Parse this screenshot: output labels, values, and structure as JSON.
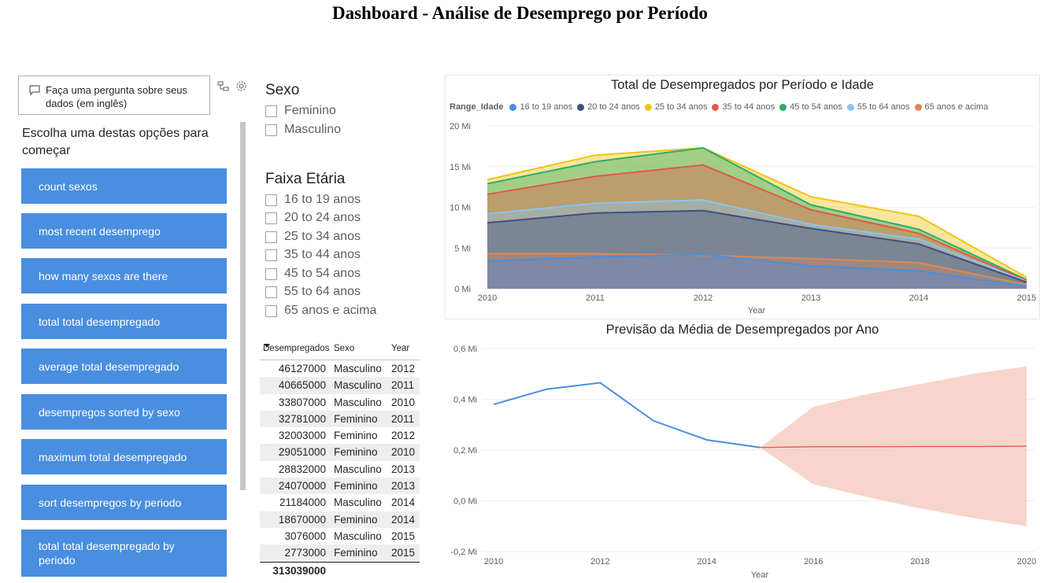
{
  "page_title": "Dashboard - Análise de Desemprego por Período",
  "qa": {
    "placeholder": "Faça uma pergunta sobre seus dados (em inglês)",
    "heading": "Escolha uma destas opções para começar",
    "suggestions": [
      "count sexos",
      "most recent desemprego",
      "how many sexos are there",
      "total total desempregado",
      "average total desempregado",
      "desempregos sorted by sexo",
      "maximum total desempregado",
      "sort desempregos by periodo",
      "total total desempregado by periodo"
    ]
  },
  "slicers": {
    "sexo": {
      "title": "Sexo",
      "options": [
        "Feminino",
        "Masculino"
      ]
    },
    "faixa": {
      "title": "Faixa Etária",
      "options": [
        "16 to 19 anos",
        "20 to 24 anos",
        "25 to 34 anos",
        "35 to 44 anos",
        "45 to 54 anos",
        "55 to 64 anos",
        "65 anos e acima"
      ]
    }
  },
  "table": {
    "columns": [
      "Desempregados",
      "Sexo",
      "Year"
    ],
    "rows": [
      [
        "46127000",
        "Masculino",
        "2012"
      ],
      [
        "40665000",
        "Masculino",
        "2011"
      ],
      [
        "33807000",
        "Masculino",
        "2010"
      ],
      [
        "32781000",
        "Feminino",
        "2011"
      ],
      [
        "32003000",
        "Feminino",
        "2012"
      ],
      [
        "29051000",
        "Feminino",
        "2010"
      ],
      [
        "28832000",
        "Masculino",
        "2013"
      ],
      [
        "24070000",
        "Feminino",
        "2013"
      ],
      [
        "21184000",
        "Masculino",
        "2014"
      ],
      [
        "18670000",
        "Feminino",
        "2014"
      ],
      [
        "3076000",
        "Masculino",
        "2015"
      ],
      [
        "2773000",
        "Feminino",
        "2015"
      ]
    ],
    "total": "313039000"
  },
  "chart_data": [
    {
      "type": "area",
      "title": "Total de Desempregados por Período e Idade",
      "xlabel": "Year",
      "ylabel": "",
      "legend_title": "Range_Idade",
      "legend_position": "top-left",
      "x": [
        2010,
        2011,
        2012,
        2013,
        2014,
        2015
      ],
      "ylim": [
        0,
        20
      ],
      "yticks": [
        "0 Mi",
        "5 Mi",
        "10 Mi",
        "15 Mi",
        "20 Mi"
      ],
      "unit": "Mi",
      "series": [
        {
          "name": "16 to 19 anos",
          "color": "#4a8ee0",
          "values": [
            3.4,
            3.9,
            4.2,
            2.8,
            2.2,
            0.3
          ]
        },
        {
          "name": "20 to 24 anos",
          "color": "#3f4f7f",
          "values": [
            8.1,
            9.3,
            9.6,
            7.4,
            5.5,
            0.8
          ]
        },
        {
          "name": "25 to 34 anos",
          "color": "#f0c419",
          "values": [
            13.4,
            16.4,
            17.3,
            11.3,
            8.9,
            1.4
          ]
        },
        {
          "name": "35 to 44 anos",
          "color": "#e05a4a",
          "values": [
            11.6,
            13.8,
            15.2,
            9.7,
            6.8,
            1.0
          ]
        },
        {
          "name": "45 to 54 anos",
          "color": "#2bae66",
          "values": [
            12.9,
            15.6,
            17.3,
            10.3,
            7.3,
            1.1
          ]
        },
        {
          "name": "55 to 64 anos",
          "color": "#8ac4f0",
          "values": [
            9.2,
            10.5,
            10.9,
            7.9,
            6.1,
            0.9
          ]
        },
        {
          "name": "65 anos e acima",
          "color": "#d9895a",
          "values": [
            4.3,
            4.3,
            4.1,
            3.7,
            3.2,
            0.5
          ]
        }
      ]
    },
    {
      "type": "line",
      "title": "Previsão da Média  de Desempregados por Ano",
      "xlabel": "Year",
      "ylabel": "",
      "x_ticks": [
        2010,
        2012,
        2014,
        2016,
        2018,
        2020
      ],
      "ylim": [
        -0.2,
        0.6
      ],
      "yticks": [
        "-0,2 Mi",
        "0,0 Mi",
        "0,2 Mi",
        "0,4 Mi",
        "0,6 Mi"
      ],
      "actual": {
        "color": "#4a8ee0",
        "x": [
          2010,
          2011,
          2012,
          2013,
          2014,
          2015
        ],
        "values": [
          0.38,
          0.44,
          0.465,
          0.315,
          0.24,
          0.21
        ]
      },
      "forecast": {
        "color": "#e05a4a",
        "band_color": "#f4c6bb",
        "x": [
          2015,
          2016,
          2017,
          2018,
          2019,
          2020
        ],
        "values": [
          0.21,
          0.213,
          0.213,
          0.214,
          0.214,
          0.215
        ],
        "upper": [
          0.21,
          0.37,
          0.42,
          0.46,
          0.5,
          0.53
        ],
        "lower": [
          0.21,
          0.065,
          0.015,
          -0.03,
          -0.068,
          -0.1
        ]
      }
    }
  ]
}
